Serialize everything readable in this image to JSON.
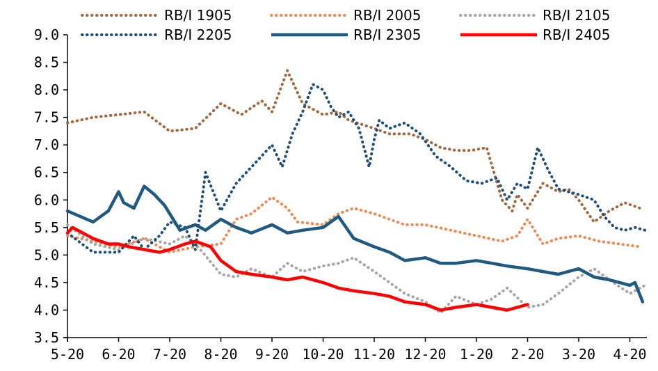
{
  "chart_data": {
    "type": "line",
    "title": "",
    "xlabel": "",
    "ylabel": "",
    "ylim": [
      3.5,
      9.0
    ],
    "yticks": [
      "3.5",
      "4.0",
      "4.5",
      "5.0",
      "5.5",
      "6.0",
      "6.5",
      "7.0",
      "7.5",
      "8.0",
      "8.5",
      "9.0"
    ],
    "xticks": [
      "5-20",
      "6-20",
      "7-20",
      "8-20",
      "9-20",
      "10-20",
      "11-20",
      "12-20",
      "1-20",
      "2-20",
      "3-20",
      "4-20"
    ],
    "grid": false,
    "legend_position": "top",
    "series": [
      {
        "name": "RB/I 1905",
        "color": "#A0693F",
        "style": "dotted",
        "x": [
          0,
          0.5,
          1,
          1.5,
          2,
          2.5,
          3,
          3.4,
          3.8,
          4,
          4.3,
          4.6,
          5,
          5.3,
          5.5,
          6,
          6.3,
          6.7,
          7,
          7.3,
          7.6,
          7.9,
          8.2,
          8.5,
          8.7,
          8.8,
          9,
          9.3,
          9.6,
          9.8,
          10,
          10.3,
          10.6,
          10.9,
          11.2
        ],
        "y": [
          7.4,
          7.5,
          7.55,
          7.6,
          7.25,
          7.3,
          7.75,
          7.55,
          7.8,
          7.6,
          8.35,
          7.75,
          7.55,
          7.6,
          7.45,
          7.3,
          7.2,
          7.2,
          7.1,
          6.95,
          6.9,
          6.9,
          6.95,
          6.0,
          5.8,
          6.1,
          5.85,
          6.3,
          6.15,
          6.2,
          6.0,
          5.6,
          5.8,
          5.95,
          5.85
        ]
      },
      {
        "name": "RB/I 2005",
        "color": "#F08A55",
        "style": "dotted",
        "x": [
          0,
          0.5,
          1,
          1.5,
          2,
          2.5,
          3,
          3.3,
          3.6,
          4,
          4.3,
          4.5,
          5,
          5.3,
          5.6,
          6,
          6.3,
          6.6,
          7,
          7.5,
          8,
          8.5,
          8.8,
          9,
          9.3,
          9.6,
          10,
          10.4,
          10.8,
          11.2
        ],
        "y": [
          5.35,
          5.25,
          5.15,
          5.3,
          5.05,
          5.15,
          5.2,
          5.65,
          5.75,
          6.05,
          5.85,
          5.6,
          5.55,
          5.75,
          5.85,
          5.75,
          5.65,
          5.55,
          5.55,
          5.45,
          5.35,
          5.25,
          5.35,
          5.65,
          5.2,
          5.3,
          5.35,
          5.25,
          5.2,
          5.15
        ]
      },
      {
        "name": "RB/I 2105",
        "color": "#A6A6A6",
        "style": "dotted",
        "x": [
          0,
          0.5,
          1,
          1.5,
          2,
          2.3,
          2.6,
          3,
          3.3,
          3.6,
          4,
          4.3,
          4.6,
          5,
          5.3,
          5.6,
          6,
          6.3,
          6.6,
          7,
          7.3,
          7.6,
          8,
          8.3,
          8.6,
          9,
          9.3,
          9.6,
          10,
          10.3,
          10.6,
          11,
          11.3
        ],
        "y": [
          5.55,
          5.2,
          5.1,
          5.3,
          5.2,
          5.35,
          5.1,
          4.65,
          4.6,
          4.75,
          4.6,
          4.85,
          4.7,
          4.8,
          4.85,
          4.95,
          4.7,
          4.5,
          4.3,
          4.15,
          3.95,
          4.25,
          4.1,
          4.2,
          4.4,
          4.05,
          4.1,
          4.3,
          4.6,
          4.75,
          4.55,
          4.3,
          4.45
        ]
      },
      {
        "name": "RB/I 2205",
        "color": "#1F4E79",
        "style": "dotted",
        "x": [
          0,
          0.5,
          1,
          1.3,
          1.5,
          1.8,
          2,
          2.3,
          2.5,
          2.7,
          3,
          3.3,
          3.6,
          3.8,
          4,
          4.2,
          4.4,
          4.6,
          4.8,
          5,
          5.15,
          5.3,
          5.5,
          5.7,
          5.9,
          6,
          6.1,
          6.3,
          6.6,
          6.9,
          7.2,
          7.5,
          7.8,
          8.1,
          8.4,
          8.6,
          8.8,
          9,
          9.2,
          9.4,
          9.6,
          9.8,
          10,
          10.3,
          10.5,
          10.7,
          10.9,
          11.1,
          11.3
        ],
        "y": [
          5.4,
          5.05,
          5.05,
          5.35,
          5.1,
          5.35,
          5.6,
          5.5,
          5.1,
          6.5,
          5.8,
          6.3,
          6.6,
          6.8,
          7.0,
          6.6,
          7.2,
          7.6,
          8.1,
          8.0,
          7.7,
          7.5,
          7.6,
          7.3,
          6.6,
          7.1,
          7.45,
          7.3,
          7.4,
          7.2,
          6.8,
          6.6,
          6.35,
          6.3,
          6.4,
          6.0,
          6.3,
          6.2,
          6.95,
          6.55,
          6.2,
          6.15,
          6.1,
          6.0,
          5.7,
          5.5,
          5.45,
          5.5,
          5.45
        ]
      },
      {
        "name": "RB/I 2305",
        "color": "#1F5A82",
        "style": "solid",
        "x": [
          0,
          0.5,
          0.8,
          1,
          1.1,
          1.3,
          1.5,
          1.7,
          1.9,
          2.2,
          2.5,
          2.7,
          3,
          3.3,
          3.6,
          4,
          4.3,
          4.6,
          5,
          5.3,
          5.6,
          6,
          6.3,
          6.6,
          7,
          7.3,
          7.6,
          8,
          8.3,
          8.6,
          9,
          9.3,
          9.6,
          10,
          10.3,
          10.6,
          11,
          11.1,
          11.25
        ],
        "y": [
          5.8,
          5.6,
          5.8,
          6.15,
          5.95,
          5.85,
          6.25,
          6.1,
          5.9,
          5.45,
          5.55,
          5.45,
          5.65,
          5.5,
          5.4,
          5.55,
          5.4,
          5.45,
          5.5,
          5.7,
          5.3,
          5.15,
          5.05,
          4.9,
          4.95,
          4.85,
          4.85,
          4.9,
          4.85,
          4.8,
          4.75,
          4.7,
          4.65,
          4.75,
          4.6,
          4.55,
          4.45,
          4.5,
          4.15
        ]
      },
      {
        "name": "RB/I 2405",
        "color": "#FF0000",
        "style": "solid",
        "x": [
          0,
          0.1,
          0.3,
          0.5,
          0.8,
          1,
          1.2,
          1.5,
          1.8,
          2,
          2.3,
          2.5,
          2.8,
          3,
          3.3,
          3.6,
          4,
          4.3,
          4.6,
          5,
          5.3,
          5.6,
          6,
          6.3,
          6.6,
          7,
          7.3,
          7.6,
          8,
          8.3,
          8.6,
          9
        ],
        "y": [
          5.4,
          5.5,
          5.4,
          5.3,
          5.2,
          5.2,
          5.15,
          5.1,
          5.05,
          5.1,
          5.2,
          5.25,
          5.15,
          4.9,
          4.7,
          4.65,
          4.6,
          4.55,
          4.6,
          4.5,
          4.4,
          4.35,
          4.3,
          4.25,
          4.15,
          4.1,
          4.0,
          4.05,
          4.1,
          4.05,
          4.0,
          4.1
        ]
      }
    ]
  }
}
